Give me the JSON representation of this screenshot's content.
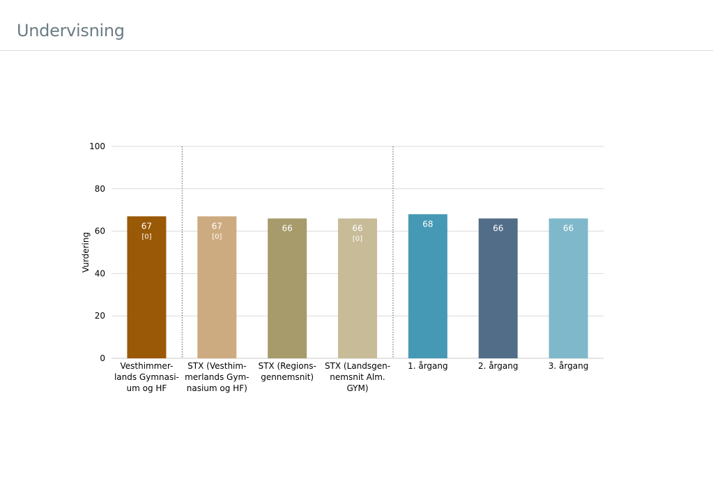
{
  "page": {
    "title": "Undervisning"
  },
  "chart_data": {
    "type": "bar",
    "ylabel": "Vurdering",
    "ylim": [
      0,
      100
    ],
    "yticks": [
      0,
      20,
      40,
      60,
      80,
      100
    ],
    "grid": true,
    "legend": "none",
    "group_separators_after_index": [
      0,
      3
    ],
    "bars": [
      {
        "category": "Vesthimmer-lands Gymnasi-um og HF",
        "label_lines": [
          "Vesthimmer-",
          "lands Gymnasi-",
          "um og HF"
        ],
        "value": 67,
        "value_label": "67",
        "count_label": "[0]",
        "color": "#9a5906"
      },
      {
        "category": "STX (Vesthim-merlands Gym-nasium og HF)",
        "label_lines": [
          "STX (Vesthim-",
          "merlands Gym-",
          "nasium og HF)"
        ],
        "value": 67,
        "value_label": "67",
        "count_label": "[0]",
        "color": "#cdab80"
      },
      {
        "category": "STX (Regions-gennemsnit)",
        "label_lines": [
          "STX (Regions-",
          "gennemsnit)"
        ],
        "value": 66,
        "value_label": "66",
        "count_label": "",
        "color": "#a79b6b"
      },
      {
        "category": "STX (Landsgen-nemsnit Alm. GYM)",
        "label_lines": [
          "STX (Landsgen-",
          "nemsnit Alm.",
          "GYM)"
        ],
        "value": 66,
        "value_label": "66",
        "count_label": "[0]",
        "color": "#c7bb98"
      },
      {
        "category": "1. årgang",
        "label_lines": [
          "1. årgang"
        ],
        "value": 68,
        "value_label": "68",
        "count_label": "",
        "color": "#4699b4"
      },
      {
        "category": "2. årgang",
        "label_lines": [
          "2. årgang"
        ],
        "value": 66,
        "value_label": "66",
        "count_label": "",
        "color": "#526d87"
      },
      {
        "category": "3. årgang",
        "label_lines": [
          "3. årgang"
        ],
        "value": 66,
        "value_label": "66",
        "count_label": "",
        "color": "#7fb8cb"
      }
    ],
    "colors": {
      "grid": "#d9d9d9",
      "axis": "#c8c8c8",
      "separator": "#555555",
      "text": "#000000",
      "bar_text": "#ffffff"
    }
  }
}
